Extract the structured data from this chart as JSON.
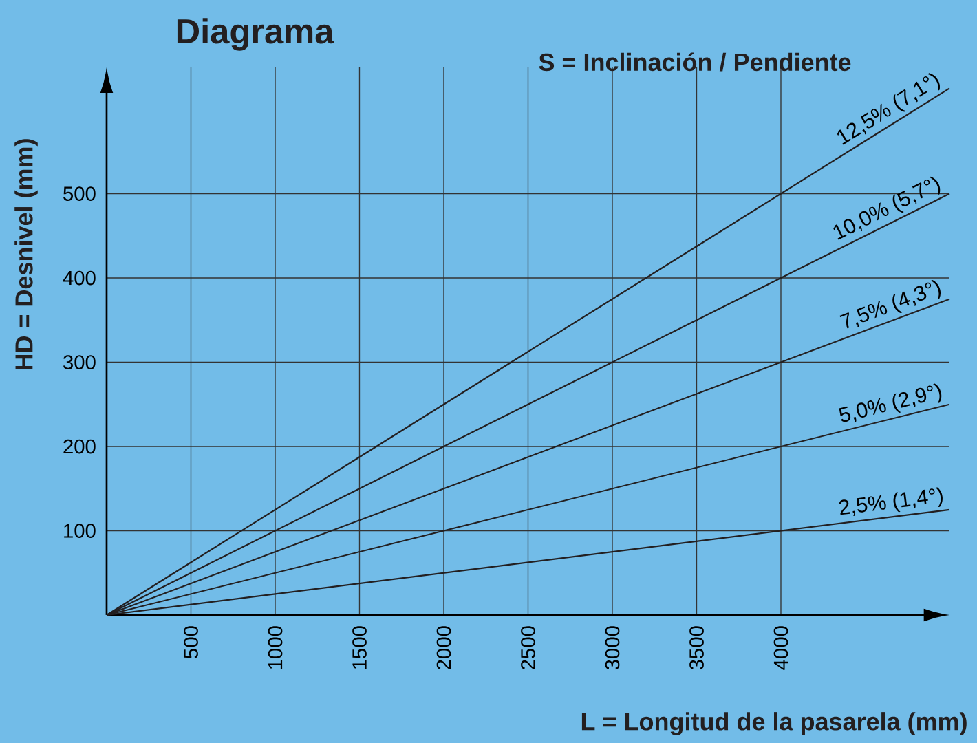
{
  "chart_data": {
    "type": "line",
    "title": "Diagrama",
    "subtitle": "S = Inclinación / Pendiente",
    "xlabel": "L = Longitud de la pasarela (mm)",
    "ylabel": "HD = Desnivel (mm)",
    "xlim": [
      0,
      5000
    ],
    "ylim": [
      0,
      650
    ],
    "xticks": [
      500,
      1000,
      1500,
      2000,
      2500,
      3000,
      3500,
      4000
    ],
    "yticks": [
      100,
      200,
      300,
      400,
      500
    ],
    "grid": true,
    "marker": "none",
    "line_style": "solid",
    "x": [
      0,
      5000
    ],
    "series": [
      {
        "name": "12,5% (7,1°)",
        "color": "#231f20",
        "values": [
          0,
          625
        ]
      },
      {
        "name": "10,0% (5,7°)",
        "color": "#231f20",
        "values": [
          0,
          500
        ]
      },
      {
        "name": "7,5% (4,3°)",
        "color": "#231f20",
        "values": [
          0,
          375
        ]
      },
      {
        "name": "5,0% (2,9°)",
        "color": "#231f20",
        "values": [
          0,
          250
        ]
      },
      {
        "name": "2,5% (1,4°)",
        "color": "#231f20",
        "values": [
          0,
          125
        ]
      }
    ]
  }
}
